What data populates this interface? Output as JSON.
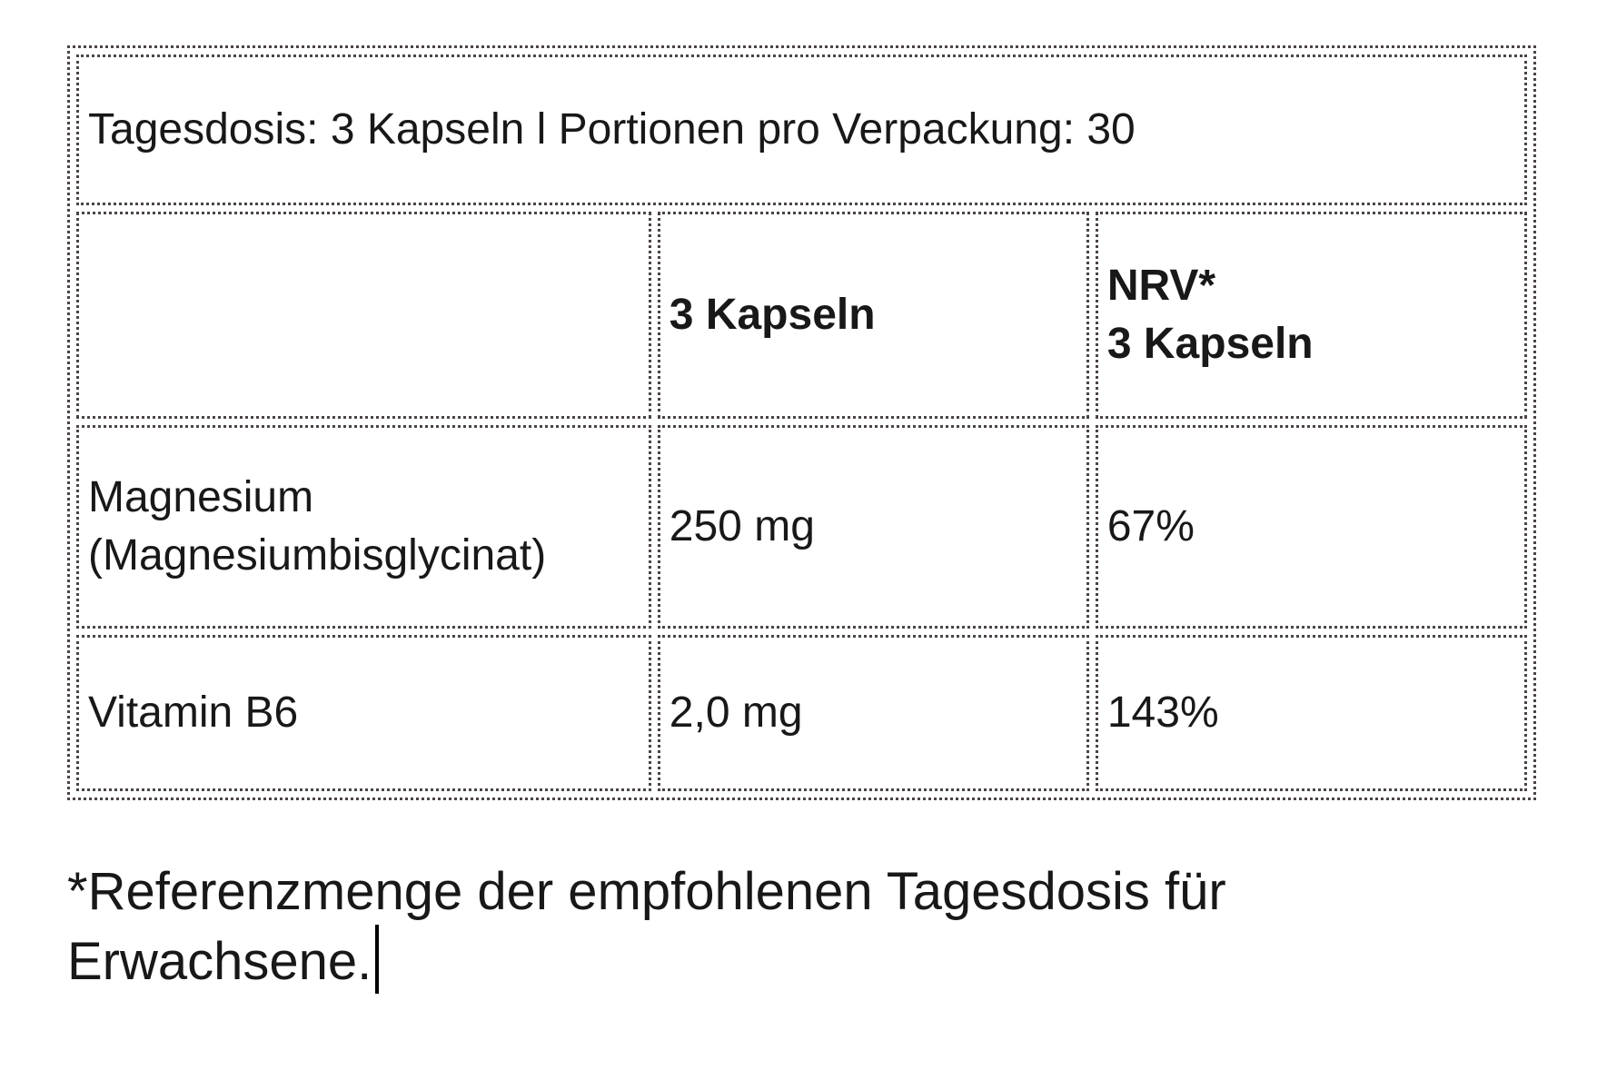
{
  "colors": {
    "text": "#181818",
    "table_border": "#4b4444",
    "background": "#ffffff",
    "caret": "#000000"
  },
  "nutrition_table": {
    "daily_dose_line": "Tagesdosis: 3 Kapseln l Portionen pro Verpackung: 30",
    "headers": {
      "amount": "3 Kapseln",
      "nrv": "NRV*\n3 Kapseln"
    },
    "rows": [
      {
        "nutrient": "Magnesium\n(Magnesiumbisglycinat)",
        "amount": "250 mg",
        "nrv": "67%"
      },
      {
        "nutrient": "Vitamin B6",
        "amount": "2,0 mg",
        "nrv": "143%"
      }
    ]
  },
  "footnote": "*Referenzmenge der empfohlenen Tagesdosis für\nErwachsene."
}
